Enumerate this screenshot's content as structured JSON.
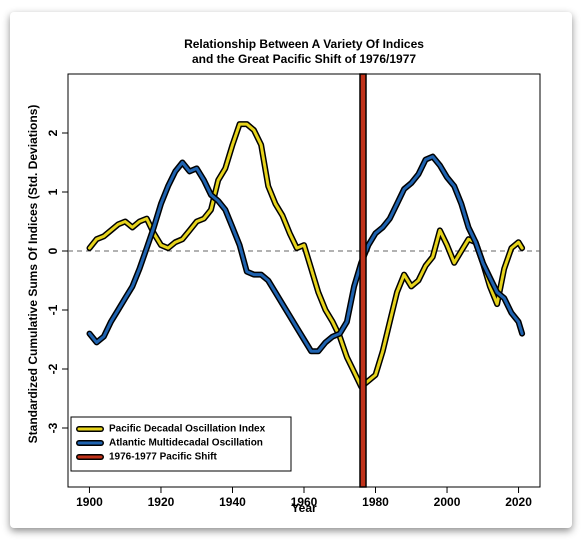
{
  "chart_data": {
    "type": "line",
    "title": [
      "Relationship Between A Variety Of Indices",
      "and the Great Pacific Shift of 1976/1977"
    ],
    "xlabel": "Year",
    "ylabel": "Standardized Cumulative Sums Of Indices (Std. Deviations)",
    "x": [
      1900,
      1902,
      1904,
      1906,
      1908,
      1910,
      1912,
      1914,
      1916,
      1918,
      1920,
      1922,
      1924,
      1926,
      1928,
      1930,
      1932,
      1934,
      1936,
      1938,
      1940,
      1942,
      1944,
      1946,
      1948,
      1950,
      1952,
      1954,
      1956,
      1958,
      1960,
      1962,
      1964,
      1966,
      1968,
      1970,
      1972,
      1974,
      1976,
      1978,
      1980,
      1982,
      1984,
      1986,
      1988,
      1990,
      1992,
      1994,
      1996,
      1998,
      2000,
      2002,
      2004,
      2006,
      2008,
      2010,
      2012,
      2014,
      2016,
      2018,
      2020,
      2021
    ],
    "series": [
      {
        "name": "Pacific Decadal Oscillation Index",
        "color": "#e6d31c",
        "values": [
          0.05,
          0.2,
          0.25,
          0.35,
          0.45,
          0.5,
          0.4,
          0.5,
          0.55,
          0.3,
          0.1,
          0.05,
          0.15,
          0.2,
          0.35,
          0.5,
          0.55,
          0.7,
          1.2,
          1.4,
          1.8,
          2.15,
          2.15,
          2.05,
          1.8,
          1.1,
          0.8,
          0.6,
          0.3,
          0.05,
          0.1,
          -0.3,
          -0.7,
          -1.0,
          -1.2,
          -1.45,
          -1.8,
          -2.05,
          -2.3,
          -2.2,
          -2.1,
          -1.7,
          -1.2,
          -0.7,
          -0.4,
          -0.6,
          -0.5,
          -0.25,
          -0.1,
          0.35,
          0.1,
          -0.2,
          0.0,
          0.2,
          0.15,
          -0.2,
          -0.6,
          -0.9,
          -0.3,
          0.05,
          0.15,
          0.05
        ]
      },
      {
        "name": "Atlantic Multidecadal Oscillation",
        "color": "#1f63b0",
        "values": [
          -1.4,
          -1.55,
          -1.45,
          -1.2,
          -1.0,
          -0.8,
          -0.6,
          -0.3,
          0.05,
          0.4,
          0.8,
          1.1,
          1.35,
          1.5,
          1.35,
          1.4,
          1.2,
          0.95,
          0.85,
          0.7,
          0.4,
          0.1,
          -0.35,
          -0.4,
          -0.4,
          -0.5,
          -0.7,
          -0.9,
          -1.1,
          -1.3,
          -1.5,
          -1.7,
          -1.7,
          -1.55,
          -1.45,
          -1.4,
          -1.2,
          -0.6,
          -0.2,
          0.1,
          0.3,
          0.4,
          0.55,
          0.8,
          1.05,
          1.15,
          1.3,
          1.55,
          1.6,
          1.45,
          1.25,
          1.1,
          0.8,
          0.4,
          0.15,
          -0.2,
          -0.45,
          -0.7,
          -0.8,
          -1.05,
          -1.2,
          -1.4
        ]
      }
    ],
    "shift": {
      "name": "1976-1977 Pacific Shift",
      "color": "#c0321a",
      "x": 1976.5
    },
    "xlim": [
      1894,
      2026
    ],
    "xticks": [
      1900,
      1920,
      1940,
      1960,
      1980,
      2000,
      2020
    ],
    "ylim": [
      -4,
      3
    ],
    "yticks": [
      -3,
      -2,
      -1,
      0,
      1,
      2
    ],
    "legend": "bottom-left"
  }
}
